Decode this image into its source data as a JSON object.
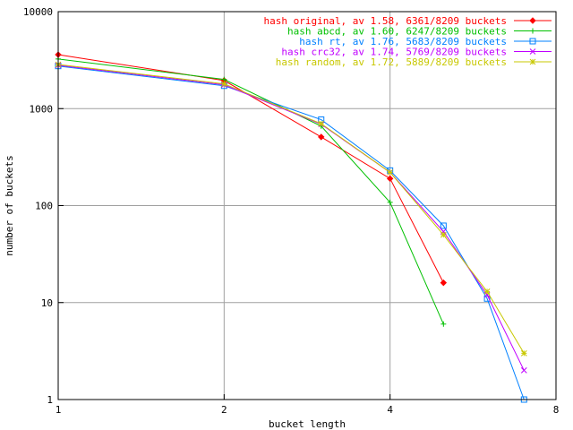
{
  "chart_data": {
    "type": "line",
    "title": "",
    "xlabel": "bucket length",
    "ylabel": "number of buckets",
    "xscale": "log",
    "yscale": "log",
    "xlim": [
      1,
      8
    ],
    "ylim": [
      1,
      10000
    ],
    "grid": true,
    "legend_position": "top-right",
    "x_ticks": [
      "1",
      "2",
      "4",
      "8"
    ],
    "y_ticks": [
      "1",
      "10",
      "100",
      "1000",
      "10000"
    ],
    "series": [
      {
        "name": "hash original, av 1.58, 6361/8209 buckets",
        "color": "#ff0000",
        "marker": "diamond",
        "x": [
          1,
          2,
          3,
          4,
          5
        ],
        "y": [
          3600,
          1950,
          510,
          190,
          16
        ]
      },
      {
        "name": "hash abcd, av 1.60, 6247/8209 buckets",
        "color": "#00c000",
        "marker": "plus",
        "x": [
          1,
          2,
          3,
          4,
          5
        ],
        "y": [
          3250,
          2000,
          660,
          108,
          6
        ]
      },
      {
        "name": "hash rt, av 1.76, 5683/8209 buckets",
        "color": "#0080ff",
        "marker": "square",
        "x": [
          1,
          2,
          3,
          4,
          5,
          6,
          7
        ],
        "y": [
          2750,
          1720,
          770,
          230,
          62,
          11,
          1
        ]
      },
      {
        "name": "hash crc32, av 1.74, 5769/8209 buckets",
        "color": "#c000ff",
        "marker": "cross",
        "x": [
          1,
          2,
          3,
          4,
          5,
          6,
          7
        ],
        "y": [
          2800,
          1760,
          690,
          220,
          54,
          12,
          2
        ]
      },
      {
        "name": "hash random, av 1.72, 5889/8209 buckets",
        "color": "#c8c800",
        "marker": "star",
        "x": [
          1,
          2,
          3,
          4,
          5,
          6,
          7
        ],
        "y": [
          2850,
          1800,
          700,
          220,
          50,
          13,
          3
        ]
      }
    ]
  }
}
